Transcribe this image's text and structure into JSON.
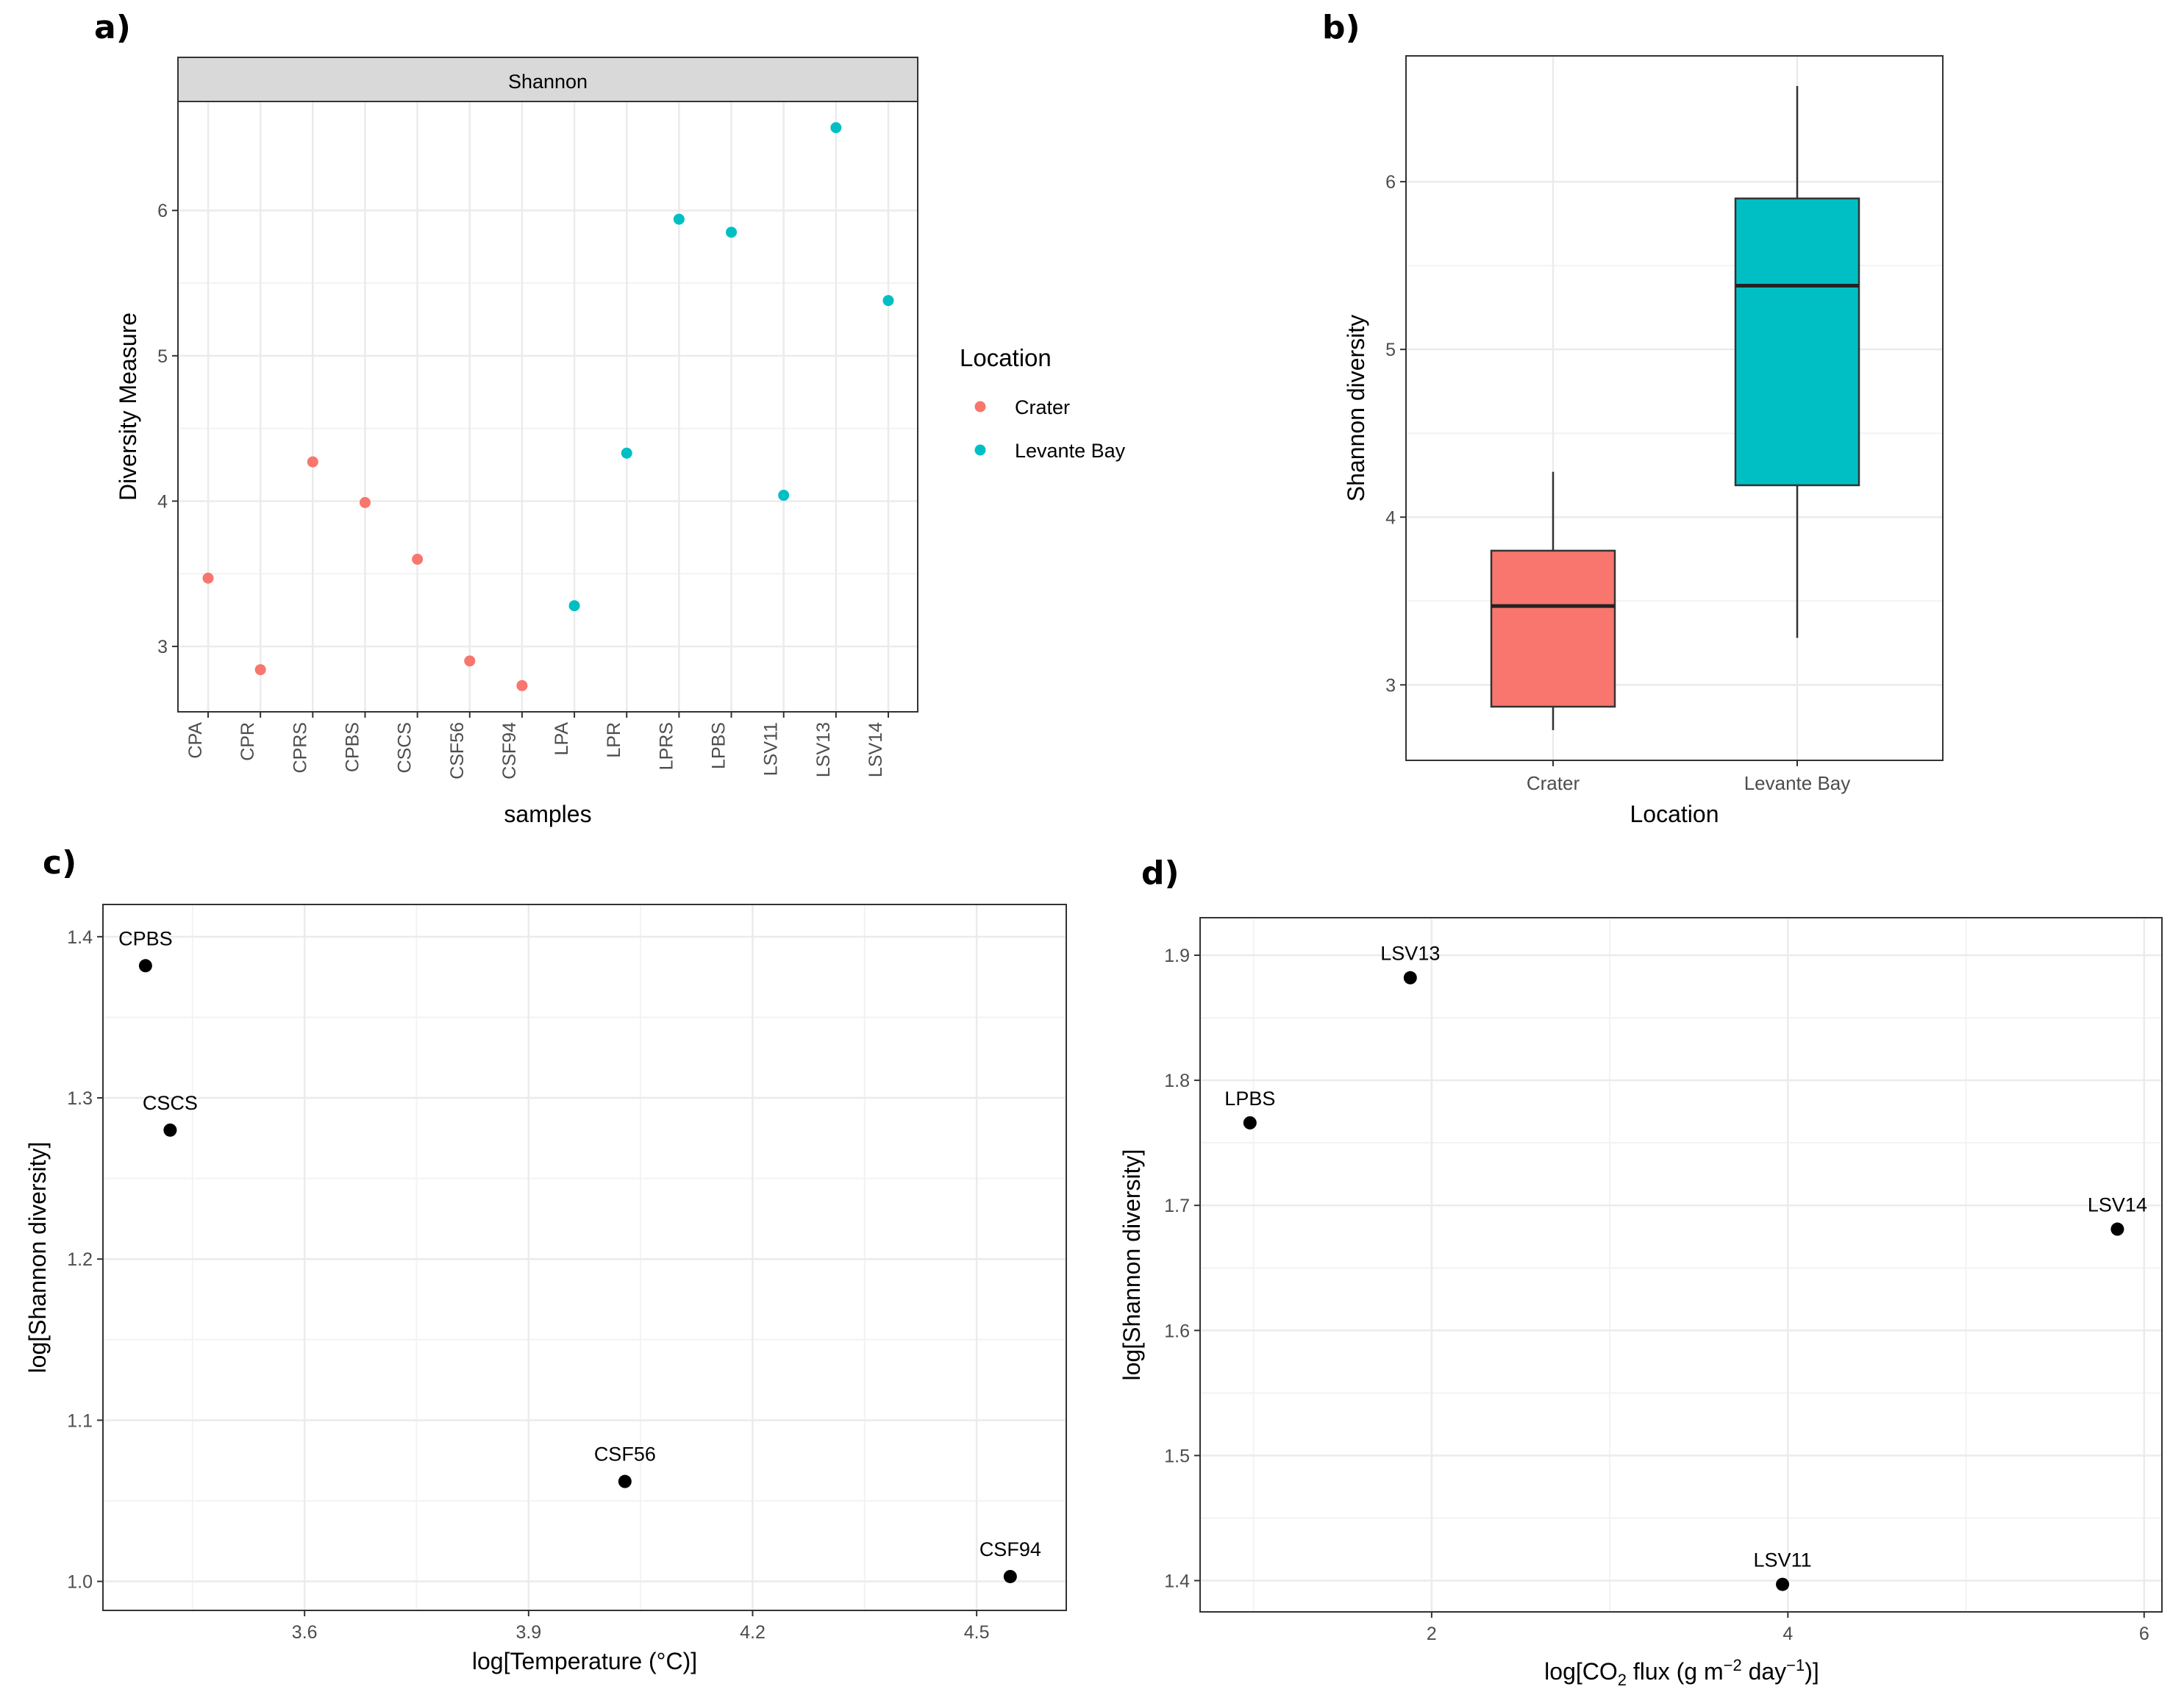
{
  "panels": {
    "a": {
      "label": "a)"
    },
    "b": {
      "label": "b)"
    },
    "c": {
      "label": "c)"
    },
    "d": {
      "label": "d)"
    }
  },
  "colors": {
    "crater": "#F8766D",
    "levante": "#00BFC4",
    "grid": "#EBEBEB",
    "strip": "#D9D9D9",
    "point": "#000000"
  },
  "chart_data": [
    {
      "id": "a",
      "type": "scatter",
      "strip_title": "Shannon",
      "xlabel": "samples",
      "ylabel": "Diversity Measure",
      "ylim": [
        2.55,
        6.75
      ],
      "yticks": [
        3,
        4,
        5,
        6
      ],
      "categories": [
        "CPA",
        "CPR",
        "CPRS",
        "CPBS",
        "CSCS",
        "CSF56",
        "CSF94",
        "LPA",
        "LPR",
        "LPRS",
        "LPBS",
        "LSV11",
        "LSV13",
        "LSV14"
      ],
      "values": [
        3.47,
        2.84,
        4.27,
        3.99,
        3.6,
        2.9,
        2.73,
        3.28,
        4.33,
        5.94,
        5.85,
        4.04,
        6.57,
        5.38
      ],
      "groups": [
        "Crater",
        "Crater",
        "Crater",
        "Crater",
        "Crater",
        "Crater",
        "Crater",
        "Levante Bay",
        "Levante Bay",
        "Levante Bay",
        "Levante Bay",
        "Levante Bay",
        "Levante Bay",
        "Levante Bay"
      ],
      "legend": {
        "title": "Location",
        "entries": [
          "Crater",
          "Levante Bay"
        ]
      }
    },
    {
      "id": "b",
      "type": "box",
      "xlabel": "Location",
      "ylabel": "Shannon diversity",
      "ylim": [
        2.55,
        6.75
      ],
      "yticks": [
        3,
        4,
        5,
        6
      ],
      "categories": [
        "Crater",
        "Levante Bay"
      ],
      "boxes": [
        {
          "name": "Crater",
          "min": 2.73,
          "q1": 2.87,
          "median": 3.47,
          "q3": 3.8,
          "max": 4.27
        },
        {
          "name": "Levante Bay",
          "min": 3.28,
          "q1": 4.19,
          "median": 5.38,
          "q3": 5.9,
          "max": 6.57
        }
      ]
    },
    {
      "id": "c",
      "type": "scatter",
      "xlabel": "log[Temperature (°C)]",
      "ylabel": "log[Shannon diversity]",
      "xlim": [
        3.33,
        4.62
      ],
      "ylim": [
        0.982,
        1.42
      ],
      "xticks": [
        "3.6",
        "3.9",
        "4.2",
        "4.5"
      ],
      "yticks": [
        "1.0",
        "1.1",
        "1.2",
        "1.3",
        "1.4"
      ],
      "points": [
        {
          "label": "CPBS",
          "x": 3.387,
          "y": 1.382
        },
        {
          "label": "CSCS",
          "x": 3.42,
          "y": 1.28
        },
        {
          "label": "CSF56",
          "x": 4.029,
          "y": 1.062
        },
        {
          "label": "CSF94",
          "x": 4.545,
          "y": 1.003
        }
      ]
    },
    {
      "id": "d",
      "type": "scatter",
      "xlabel": "log[CO",
      "xlabel_sub": "2",
      "xlabel_mid": " flux (g m",
      "xlabel_sup1": "−2",
      "xlabel_mid2": " day",
      "xlabel_sup2": "−1",
      "xlabel_end": ")]",
      "ylabel": "log[Shannon diversity]",
      "xlim": [
        0.7,
        6.1
      ],
      "ylim": [
        1.375,
        1.93
      ],
      "xticks": [
        "2",
        "4",
        "6"
      ],
      "yticks": [
        "1.4",
        "1.5",
        "1.6",
        "1.7",
        "1.8",
        "1.9"
      ],
      "points": [
        {
          "label": "LSV13",
          "x": 1.88,
          "y": 1.882
        },
        {
          "label": "LPBS",
          "x": 0.98,
          "y": 1.766
        },
        {
          "label": "LSV14",
          "x": 5.85,
          "y": 1.681
        },
        {
          "label": "LSV11",
          "x": 3.97,
          "y": 1.397
        }
      ]
    }
  ]
}
